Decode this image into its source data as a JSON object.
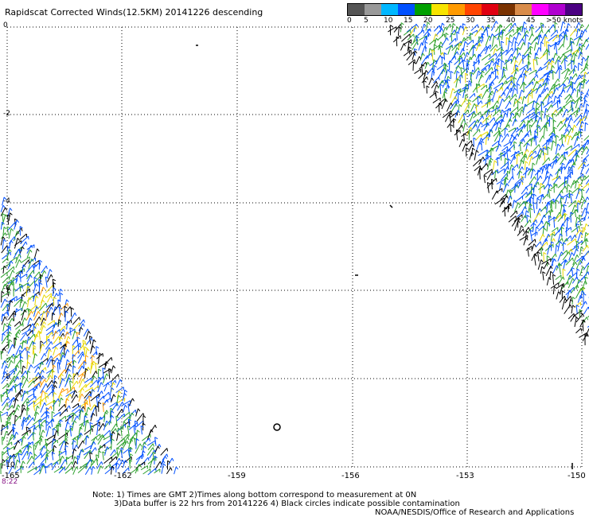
{
  "title": "Rapidscat Corrected Winds(12.5KM) 20141226 descending",
  "legend": {
    "colors": [
      "#555555",
      "#999999",
      "#00b7ff",
      "#0050ff",
      "#00a000",
      "#f7e400",
      "#ff9a00",
      "#ff4400",
      "#e00010",
      "#7a3200",
      "#d98c4a",
      "#ff00ff",
      "#b000d0",
      "#4b0082"
    ],
    "labels": [
      "0",
      "5",
      "10",
      "15",
      "20",
      "25",
      "30",
      "35",
      "40",
      "45",
      ">50 knots"
    ]
  },
  "axes": {
    "y_labels": [
      "0",
      "-2",
      "-4",
      "-6",
      "-8",
      "-10"
    ],
    "x_labels": [
      "-165",
      "-162",
      "-159",
      "-156",
      "-153",
      "-150"
    ]
  },
  "time_label": "8:22",
  "notes": {
    "line1": "Note: 1) Times are GMT 2)Times along bottom correspond to measurement at 0N",
    "line2": "3)Data buffer is 22 hrs from 20141226 4) Black circles indicate possible contamination",
    "line3": "NOAA/NESDIS/Office of Research and Applications"
  }
}
